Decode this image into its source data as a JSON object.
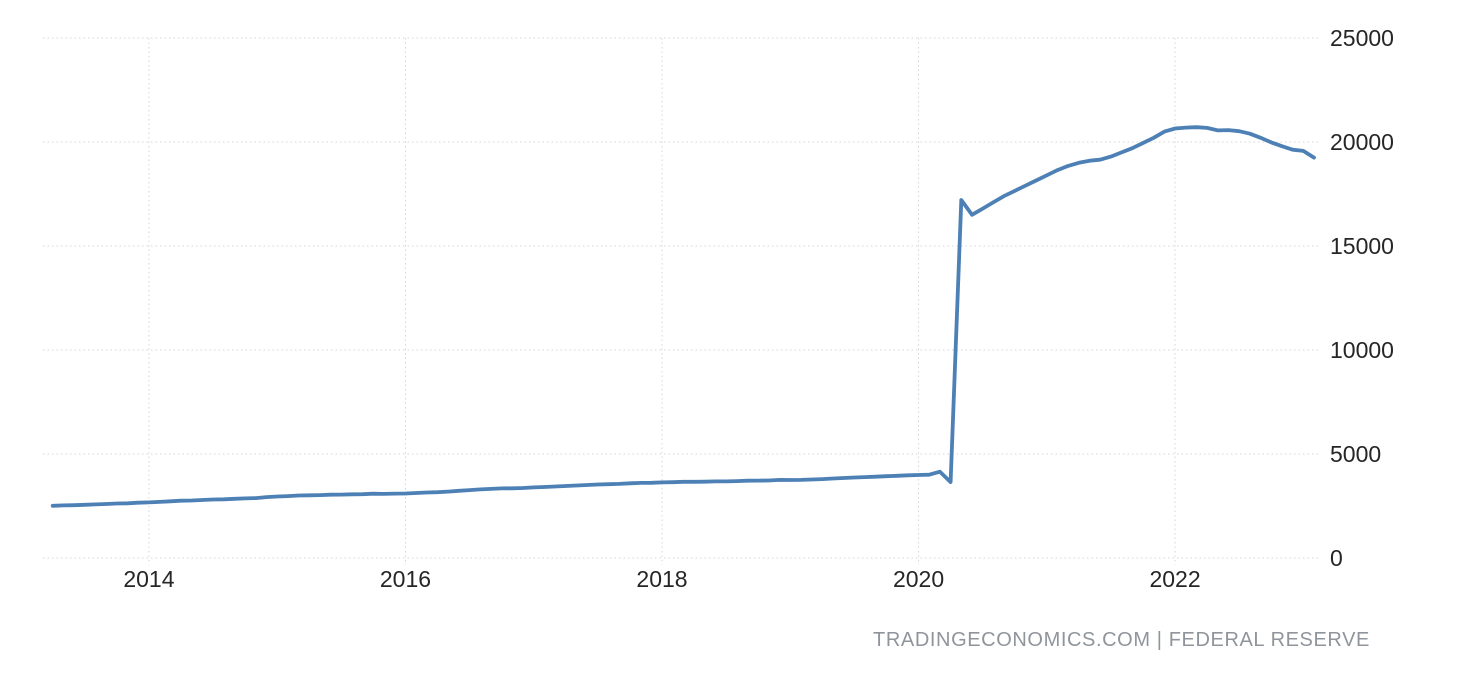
{
  "footer": {
    "attribution": "TRADINGECONOMICS.COM | FEDERAL RESERVE"
  },
  "colors": {
    "line": "#4d80b5",
    "grid": "#d6d6d6",
    "tick_label": "#262626",
    "attribution": "#8f959b",
    "background": "#ffffff"
  },
  "chart_data": {
    "type": "line",
    "title": "",
    "xlabel": "",
    "ylabel": "",
    "legend": "none",
    "grid": "dotted",
    "x_ticks": [
      2014,
      2016,
      2018,
      2020,
      2022
    ],
    "y_ticks": [
      0,
      5000,
      10000,
      15000,
      20000,
      25000
    ],
    "xlim": [
      2013.174,
      2023.13
    ],
    "ylim": [
      0,
      25000
    ],
    "series": [
      {
        "color": "#4d80b5",
        "x_start": "2013-04",
        "x_step_months": 1,
        "values": [
          2510,
          2527,
          2540,
          2556,
          2575,
          2597,
          2618,
          2631,
          2660,
          2673,
          2699,
          2725,
          2754,
          2765,
          2787,
          2811,
          2824,
          2844,
          2865,
          2878,
          2927,
          2958,
          2976,
          3004,
          3014,
          3026,
          3041,
          3050,
          3061,
          3067,
          3090,
          3081,
          3095,
          3101,
          3125,
          3151,
          3163,
          3191,
          3233,
          3265,
          3296,
          3320,
          3346,
          3351,
          3367,
          3396,
          3414,
          3438,
          3463,
          3487,
          3510,
          3533,
          3547,
          3562,
          3589,
          3609,
          3617,
          3636,
          3644,
          3663,
          3662,
          3669,
          3683,
          3685,
          3698,
          3714,
          3720,
          3726,
          3753,
          3749,
          3757,
          3775,
          3794,
          3821,
          3844,
          3869,
          3889,
          3910,
          3933,
          3954,
          3978,
          3990,
          4004,
          4150,
          3650,
          17210,
          16500,
          16800,
          17100,
          17400,
          17650,
          17900,
          18150,
          18400,
          18650,
          18850,
          19000,
          19100,
          19150,
          19300,
          19500,
          19700,
          19950,
          20200,
          20500,
          20650,
          20690,
          20710,
          20680,
          20560,
          20570,
          20520,
          20400,
          20200,
          19980,
          19800,
          19630,
          19570,
          19250
        ]
      }
    ]
  }
}
